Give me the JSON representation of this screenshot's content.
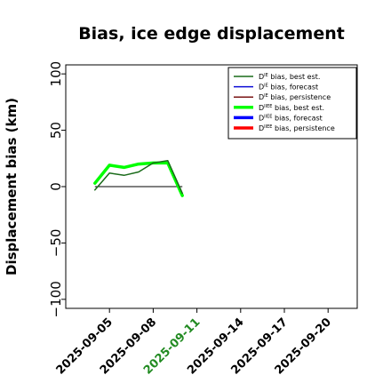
{
  "chart_data": {
    "type": "line",
    "title": "Bias, ice edge displacement",
    "ylabel": "Displacement bias (km)",
    "xlabel": "",
    "ylim": [
      -108,
      108
    ],
    "xlim": [
      "2025-09-02",
      "2025-09-22"
    ],
    "yticks": [
      100,
      50,
      0,
      -50,
      -100
    ],
    "ytick_labels": [
      "100",
      "50",
      "0",
      "−50",
      "−100"
    ],
    "xticks": [
      "2025-09-05",
      "2025-09-08",
      "2025-09-11",
      "2025-09-14",
      "2025-09-17",
      "2025-09-20"
    ],
    "highlight_xtick": "2025-09-11",
    "grid": false,
    "legend_position": "top-right",
    "zero_line": true,
    "legend": [
      {
        "key": "d1_best",
        "prefix": "D",
        "sup": "IE",
        "suffix": " bias, best est.",
        "color": "#1a6b1a",
        "width": 1.5
      },
      {
        "key": "d1_fc",
        "prefix": "D",
        "sup": "IE",
        "suffix": " bias, forecast",
        "color": "#0b0bd6",
        "width": 1.5
      },
      {
        "key": "d1_pers",
        "prefix": "D",
        "sup": "IE",
        "suffix": " bias, persistence",
        "color": "#7a1515",
        "width": 1.5
      },
      {
        "key": "d2_best",
        "prefix": "D",
        "sup": "IIEE",
        "suffix": " bias, best est.",
        "color": "#00ff00",
        "width": 3.5
      },
      {
        "key": "d2_fc",
        "prefix": "D",
        "sup": "IIEE",
        "suffix": " bias, forecast",
        "color": "#0000ff",
        "width": 3.5
      },
      {
        "key": "d2_pers",
        "prefix": "D",
        "sup": "IIEE",
        "suffix": " bias, persistence",
        "color": "#ff0000",
        "width": 3.5
      }
    ],
    "series": [
      {
        "key": "d2_best",
        "x": [
          "2025-09-04",
          "2025-09-05",
          "2025-09-06",
          "2025-09-07",
          "2025-09-08",
          "2025-09-09",
          "2025-09-10"
        ],
        "values": [
          3,
          19,
          17,
          20,
          21,
          21,
          -8
        ]
      },
      {
        "key": "d1_best",
        "x": [
          "2025-09-04",
          "2025-09-05",
          "2025-09-06",
          "2025-09-07",
          "2025-09-08",
          "2025-09-09",
          "2025-09-10"
        ],
        "values": [
          -3,
          12,
          10,
          13,
          21,
          23,
          -6
        ]
      }
    ]
  }
}
